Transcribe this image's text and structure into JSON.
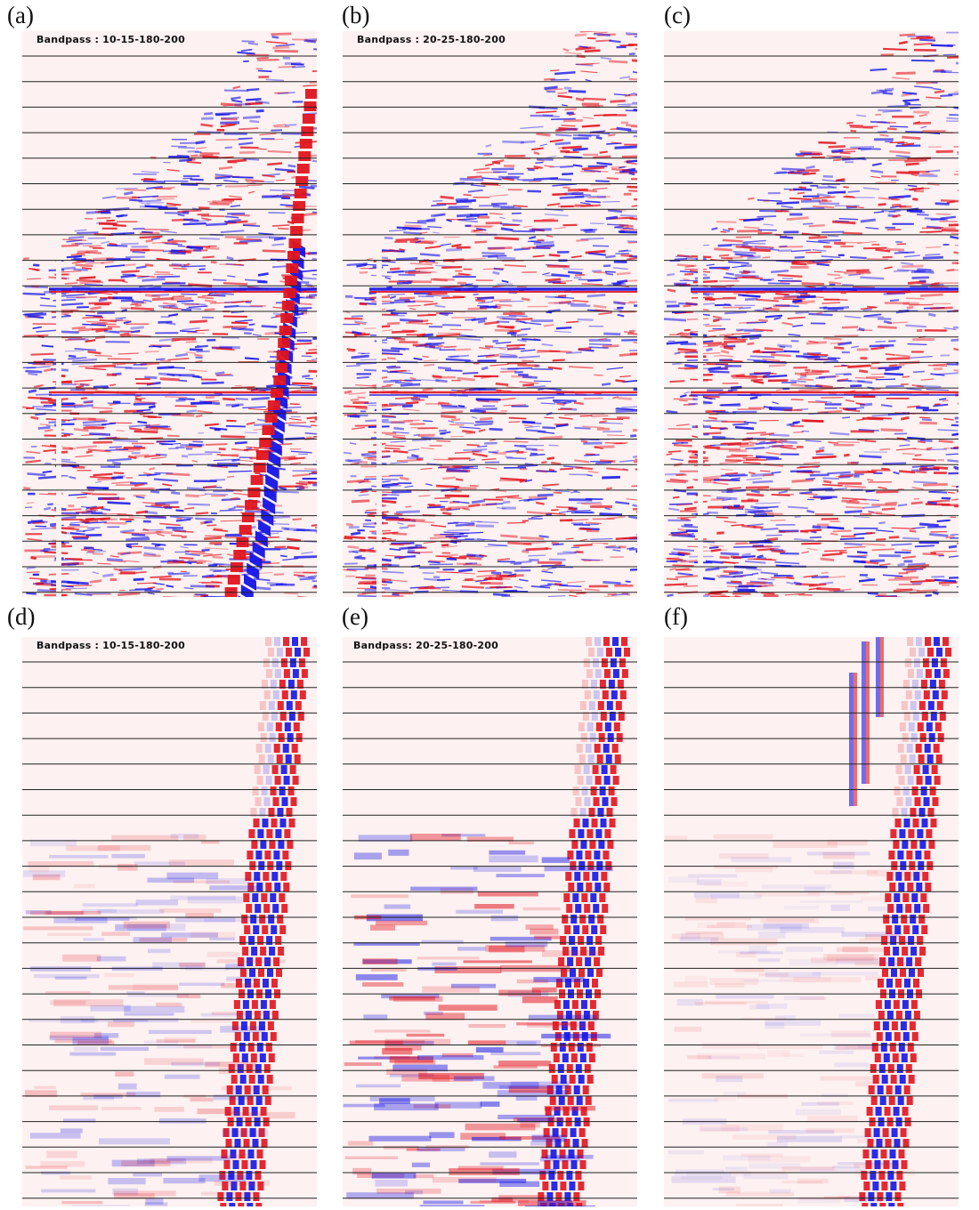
{
  "colors": {
    "background": "#fdf1f1",
    "positive": "#e0141e",
    "negative": "#1414e6",
    "gridline": "#222222"
  },
  "panels": [
    {
      "id": "a",
      "label": "(a)",
      "caption": "Bandpass : 10-15-180-200",
      "style": "raw",
      "strong_noise": true
    },
    {
      "id": "b",
      "label": "(b)",
      "caption": "Bandpass : 20-25-180-200",
      "style": "raw",
      "strong_noise": false
    },
    {
      "id": "c",
      "label": "(c)",
      "caption": "",
      "style": "raw",
      "strong_noise": false
    },
    {
      "id": "d",
      "label": "(d)",
      "caption": "Bandpass : 10-15-180-200",
      "style": "noise",
      "variant": "d"
    },
    {
      "id": "e",
      "label": "(e)",
      "caption": "Bandpass: 20-25-180-200",
      "style": "noise",
      "variant": "e"
    },
    {
      "id": "f",
      "label": "(f)",
      "caption": "",
      "style": "noise",
      "variant": "f"
    }
  ]
}
